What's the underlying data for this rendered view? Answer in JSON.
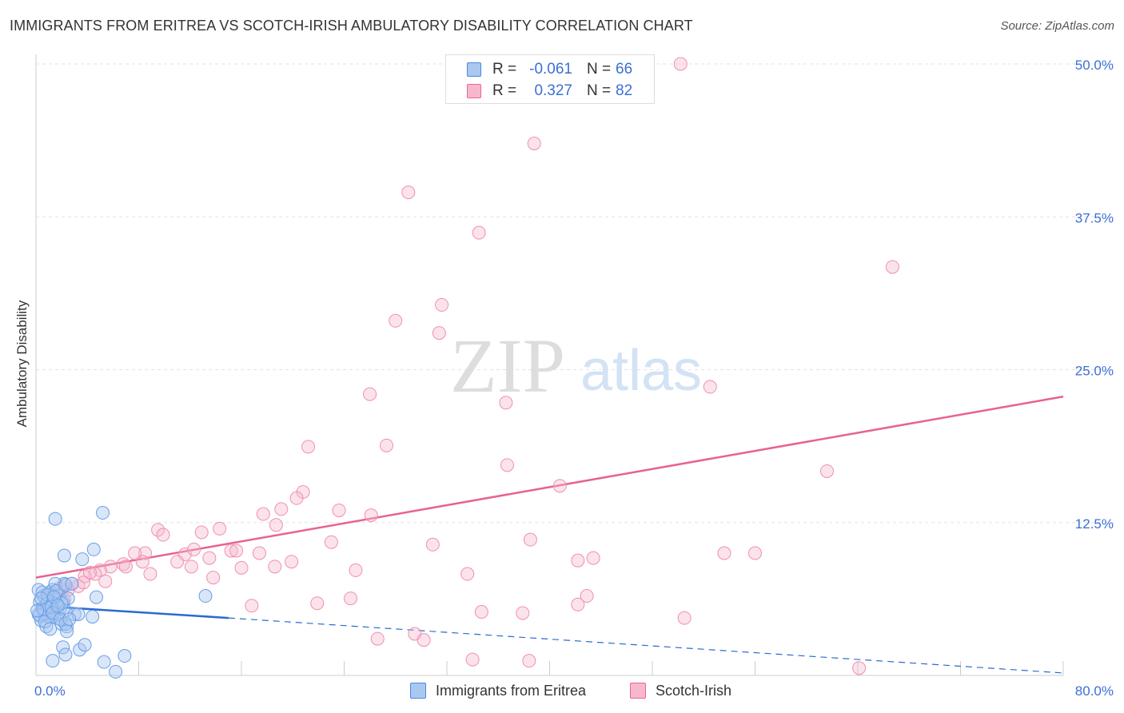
{
  "title": "IMMIGRANTS FROM ERITREA VS SCOTCH-IRISH AMBULATORY DISABILITY CORRELATION CHART",
  "source": "Source: ZipAtlas.com",
  "watermark": {
    "zip": "ZIP",
    "atlas": "atlas"
  },
  "stats": [
    {
      "r_label": "R =",
      "r_value": "-0.061",
      "n_label": "N =",
      "n_value": "66",
      "color": "#a9c8f0"
    },
    {
      "r_label": "R =",
      "r_value": "0.327",
      "n_label": "N =",
      "n_value": "82",
      "color": "#f6b8cd"
    }
  ],
  "legend": [
    {
      "label": "Immigrants from Eritrea",
      "color": "#a9c8f0"
    },
    {
      "label": "Scotch-Irish",
      "color": "#f6b8cd"
    }
  ],
  "chart_data": {
    "type": "scatter",
    "title": "IMMIGRANTS FROM ERITREA VS SCOTCH-IRISH AMBULATORY DISABILITY CORRELATION CHART",
    "xlabel": "",
    "ylabel": "Ambulatory Disability",
    "xlim": [
      0,
      80
    ],
    "ylim": [
      0,
      50
    ],
    "x_tick_labels": {
      "min": "0.0%",
      "max": "80.0%"
    },
    "y_ticks": [
      12.5,
      25.0,
      37.5,
      50.0
    ],
    "y_tick_labels": [
      "12.5%",
      "25.0%",
      "37.5%",
      "50.0%"
    ],
    "grid": "horizontal dashed",
    "legend_position": "bottom",
    "series": [
      {
        "name": "Immigrants from Eritrea",
        "color": "#4a86e8",
        "line_color": "#2a6bd0",
        "trend": {
          "x0": 0,
          "y0": 5.7,
          "x1": 15,
          "y1": 4.7,
          "x_end": 80,
          "y_end": 0.2
        },
        "points": [
          [
            0.2,
            5.0
          ],
          [
            0.3,
            6.0
          ],
          [
            0.4,
            4.5
          ],
          [
            0.5,
            5.5
          ],
          [
            0.6,
            6.5
          ],
          [
            0.7,
            5.0
          ],
          [
            0.8,
            4.0
          ],
          [
            0.9,
            6.0
          ],
          [
            1.0,
            5.5
          ],
          [
            1.1,
            6.8
          ],
          [
            1.2,
            5.2
          ],
          [
            1.3,
            7.0
          ],
          [
            1.4,
            4.8
          ],
          [
            1.5,
            6.2
          ],
          [
            1.6,
            5.8
          ],
          [
            1.7,
            5.0
          ],
          [
            1.8,
            6.5
          ],
          [
            1.9,
            5.5
          ],
          [
            2.0,
            4.2
          ],
          [
            2.1,
            6.0
          ],
          [
            2.2,
            7.5
          ],
          [
            2.3,
            5.3
          ],
          [
            2.4,
            4.0
          ],
          [
            2.5,
            6.3
          ],
          [
            0.2,
            7.0
          ],
          [
            0.5,
            6.8
          ],
          [
            0.8,
            5.8
          ],
          [
            1.0,
            4.8
          ],
          [
            1.5,
            7.5
          ],
          [
            2.0,
            5.9
          ],
          [
            0.3,
            4.9
          ],
          [
            0.6,
            5.4
          ],
          [
            0.9,
            6.6
          ],
          [
            1.2,
            5.6
          ],
          [
            0.4,
            6.3
          ],
          [
            0.7,
            4.4
          ],
          [
            1.3,
            5.1
          ],
          [
            1.6,
            6.9
          ],
          [
            1.9,
            4.6
          ],
          [
            1.1,
            3.8
          ],
          [
            1.4,
            6.4
          ],
          [
            1.7,
            5.7
          ],
          [
            0.1,
            5.3
          ],
          [
            2.3,
            7.4
          ],
          [
            1.5,
            12.8
          ],
          [
            5.2,
            13.3
          ],
          [
            2.2,
            9.8
          ],
          [
            3.6,
            9.5
          ],
          [
            4.5,
            10.3
          ],
          [
            2.8,
            7.5
          ],
          [
            3.0,
            5.0
          ],
          [
            4.4,
            4.8
          ],
          [
            2.3,
            4.2
          ],
          [
            2.4,
            3.6
          ],
          [
            3.3,
            5.0
          ],
          [
            4.7,
            6.4
          ],
          [
            2.1,
            2.3
          ],
          [
            2.3,
            1.7
          ],
          [
            3.4,
            2.1
          ],
          [
            3.8,
            2.5
          ],
          [
            1.3,
            1.2
          ],
          [
            5.3,
            1.1
          ],
          [
            6.9,
            1.6
          ],
          [
            6.2,
            0.3
          ],
          [
            13.2,
            6.5
          ],
          [
            2.6,
            4.6
          ]
        ]
      },
      {
        "name": "Scotch-Irish",
        "color": "#f06292",
        "line_color": "#e8628f",
        "trend": {
          "x0": 0,
          "y0": 8.0,
          "x1": 80,
          "y1": 22.8
        },
        "points": [
          [
            50.2,
            50.0
          ],
          [
            38.8,
            43.5
          ],
          [
            29.0,
            39.5
          ],
          [
            34.5,
            36.2
          ],
          [
            66.7,
            33.4
          ],
          [
            31.6,
            30.3
          ],
          [
            28.0,
            29.0
          ],
          [
            31.4,
            28.0
          ],
          [
            52.5,
            23.6
          ],
          [
            26.0,
            23.0
          ],
          [
            36.6,
            22.3
          ],
          [
            21.2,
            18.7
          ],
          [
            27.3,
            18.8
          ],
          [
            36.7,
            17.2
          ],
          [
            61.6,
            16.7
          ],
          [
            40.8,
            15.5
          ],
          [
            20.8,
            15.0
          ],
          [
            20.3,
            14.5
          ],
          [
            19.1,
            13.6
          ],
          [
            17.7,
            13.2
          ],
          [
            23.6,
            13.5
          ],
          [
            26.1,
            13.1
          ],
          [
            18.7,
            12.3
          ],
          [
            14.3,
            12.0
          ],
          [
            12.9,
            11.7
          ],
          [
            9.5,
            11.9
          ],
          [
            9.9,
            11.5
          ],
          [
            30.9,
            10.7
          ],
          [
            38.5,
            11.1
          ],
          [
            23.0,
            10.9
          ],
          [
            15.2,
            10.2
          ],
          [
            15.6,
            10.2
          ],
          [
            17.4,
            10.0
          ],
          [
            11.6,
            9.9
          ],
          [
            12.3,
            10.3
          ],
          [
            8.5,
            10.0
          ],
          [
            7.7,
            10.0
          ],
          [
            53.6,
            10.0
          ],
          [
            56.0,
            10.0
          ],
          [
            43.4,
            9.6
          ],
          [
            42.2,
            9.4
          ],
          [
            13.5,
            9.6
          ],
          [
            11.0,
            9.3
          ],
          [
            19.9,
            9.3
          ],
          [
            16.0,
            8.8
          ],
          [
            18.6,
            8.9
          ],
          [
            12.1,
            8.9
          ],
          [
            8.3,
            9.3
          ],
          [
            6.8,
            9.1
          ],
          [
            7.0,
            8.9
          ],
          [
            5.8,
            8.9
          ],
          [
            8.9,
            8.3
          ],
          [
            5.0,
            8.6
          ],
          [
            4.6,
            8.3
          ],
          [
            3.8,
            8.1
          ],
          [
            13.8,
            8.0
          ],
          [
            4.2,
            8.4
          ],
          [
            5.4,
            7.7
          ],
          [
            3.3,
            7.3
          ],
          [
            3.7,
            7.6
          ],
          [
            2.8,
            7.5
          ],
          [
            2.5,
            7.0
          ],
          [
            1.8,
            7.1
          ],
          [
            2.1,
            7.2
          ],
          [
            24.9,
            8.6
          ],
          [
            33.6,
            8.3
          ],
          [
            42.9,
            6.5
          ],
          [
            24.5,
            6.3
          ],
          [
            21.9,
            5.9
          ],
          [
            42.2,
            5.8
          ],
          [
            16.8,
            5.7
          ],
          [
            34.7,
            5.2
          ],
          [
            37.9,
            5.1
          ],
          [
            50.5,
            4.7
          ],
          [
            29.5,
            3.4
          ],
          [
            26.6,
            3.0
          ],
          [
            30.2,
            2.9
          ],
          [
            38.4,
            1.2
          ],
          [
            34.0,
            1.3
          ],
          [
            64.1,
            0.6
          ],
          [
            1.5,
            6.5
          ],
          [
            2.2,
            6.2
          ]
        ]
      }
    ]
  }
}
